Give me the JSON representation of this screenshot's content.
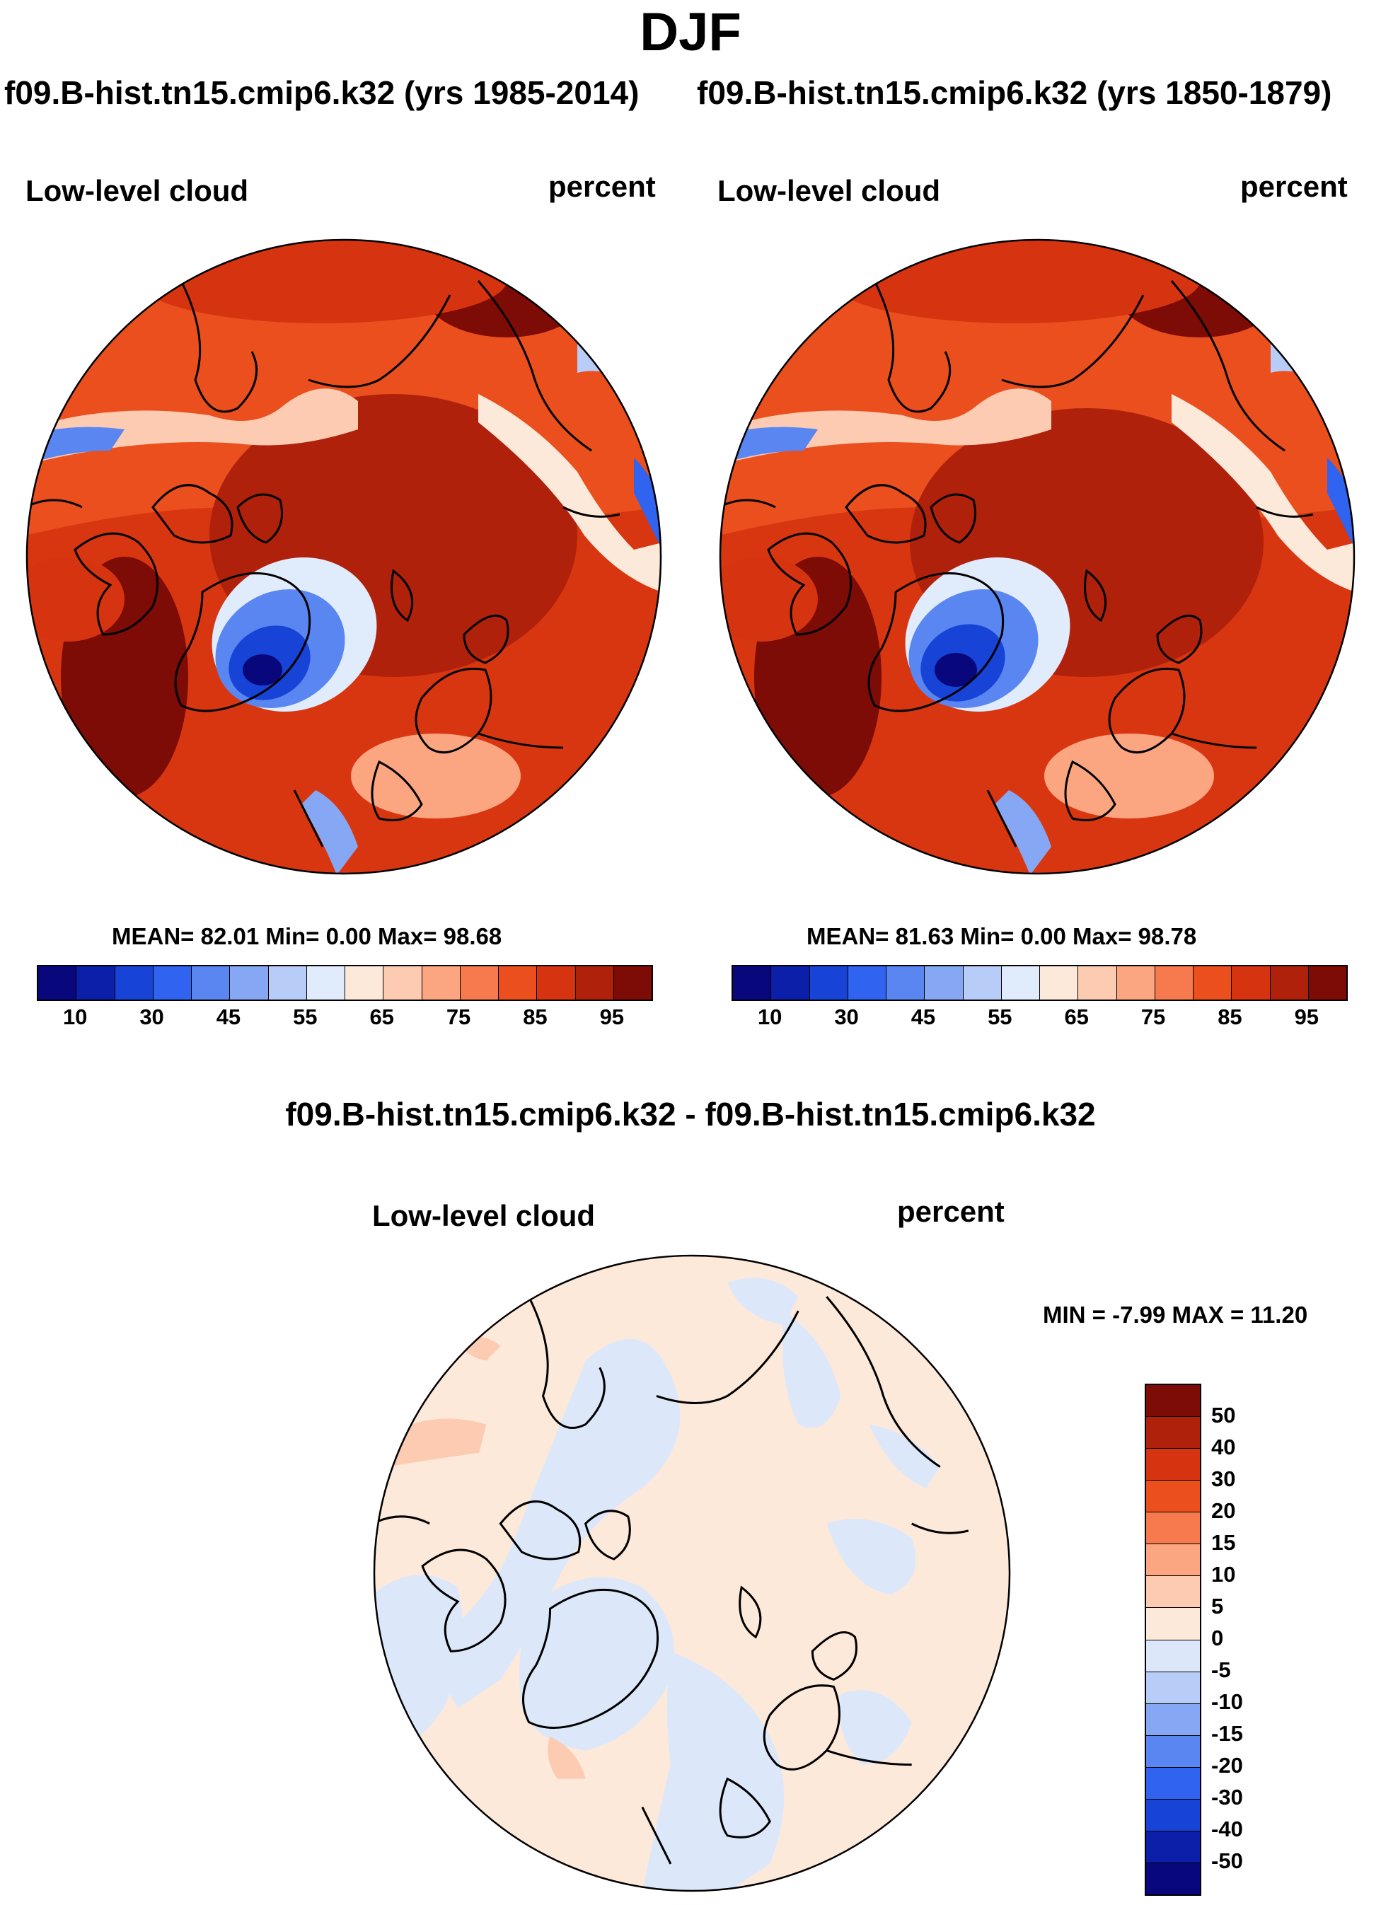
{
  "figure": {
    "season": "DJF",
    "case_title_left": "f09.B-hist.tn15.cmip6.k32 (yrs 1985-2014)",
    "case_title_right": "f09.B-hist.tn15.cmip6.k32 (yrs 1850-1879)",
    "diff_title": "f09.B-hist.tn15.cmip6.k32 - f09.B-hist.tn15.cmip6.k32"
  },
  "panels": {
    "left": {
      "variable": "Low-level cloud",
      "units": "percent",
      "stats": "MEAN=  82.01  Min=   0.00  Max=  98.68",
      "mean": 82.01,
      "min": 0.0,
      "max": 98.68
    },
    "right": {
      "variable": "Low-level cloud",
      "units": "percent",
      "stats": "MEAN=  81.63  Min=   0.00  Max=  98.78",
      "mean": 81.63,
      "min": 0.0,
      "max": 98.78
    },
    "diff": {
      "variable": "Low-level cloud",
      "units": "percent",
      "minmax": "MIN =  -7.99 MAX =  11.20",
      "min": -7.99,
      "max": 11.2
    }
  },
  "colorbar_abs": {
    "colors": [
      "#08077c",
      "#0b1fa8",
      "#1743d6",
      "#2f63f0",
      "#5a86f2",
      "#86a8f4",
      "#b8ccf8",
      "#e0ecfb",
      "#fde9da",
      "#fccbb2",
      "#fba681",
      "#f67a4d",
      "#ea4f1d",
      "#d63310",
      "#b0210c",
      "#7d0b06"
    ],
    "ticks": [
      "10",
      "30",
      "45",
      "55",
      "65",
      "75",
      "85",
      "95"
    ]
  },
  "colorbar_diff": {
    "colors": [
      "#7d0b06",
      "#b0210c",
      "#d63310",
      "#ea4f1d",
      "#f67a4d",
      "#fba681",
      "#fccbb2",
      "#fde9da",
      "#dce8fa",
      "#b8ccf8",
      "#86a8f4",
      "#5a86f2",
      "#2f63f0",
      "#1743d6",
      "#0b1fa8",
      "#08077c"
    ],
    "ticks": [
      "50",
      "40",
      "30",
      "20",
      "15",
      "10",
      "5",
      "0",
      "-5",
      "-10",
      "-15",
      "-20",
      "-30",
      "-40",
      "-50"
    ]
  }
}
